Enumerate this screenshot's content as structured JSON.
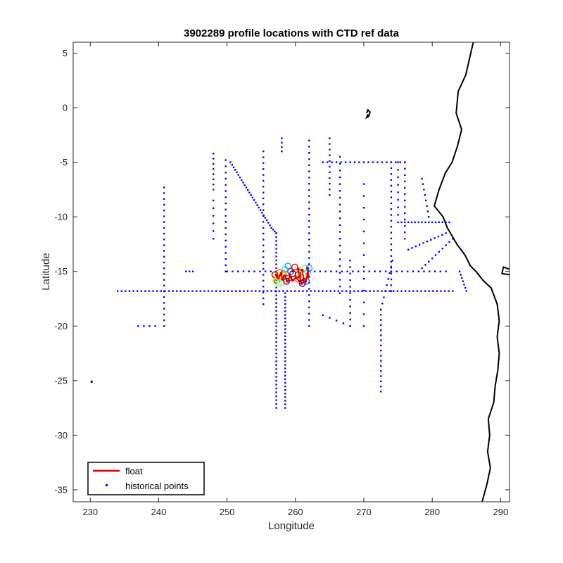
{
  "chart_data": {
    "type": "scatter",
    "title": "3902289 profile locations with CTD ref data",
    "xlabel": "Longitude",
    "ylabel": "Latitude",
    "xlim": [
      227.5,
      291.3
    ],
    "ylim": [
      -36.1,
      6.0
    ],
    "xticks": [
      230,
      240,
      250,
      260,
      270,
      280,
      290
    ],
    "yticks": [
      5,
      0,
      -5,
      -10,
      -15,
      -20,
      -25,
      -30,
      -35
    ],
    "grid": false,
    "legend": {
      "position": "bottom-left",
      "entries": [
        {
          "label": "float",
          "symbol": "line",
          "color": "#e00000"
        },
        {
          "label": "historical points",
          "symbol": "dot",
          "color": "#0000ff"
        }
      ]
    },
    "colors": {
      "float": "#e00000",
      "historical": "#0000ff",
      "coast": "#000000",
      "axes": "#262626"
    },
    "float_track": {
      "name": "float",
      "points": [
        [
          257.2,
          -15.3
        ],
        [
          257.5,
          -15.6
        ],
        [
          257.9,
          -15.2
        ],
        [
          258.1,
          -15.7
        ],
        [
          258.4,
          -15.4
        ],
        [
          258.8,
          -15.9
        ],
        [
          259.2,
          -15.5
        ],
        [
          259.6,
          -15.8
        ],
        [
          260.1,
          -15.6
        ],
        [
          260.6,
          -15.9
        ],
        [
          261.2,
          -15.7
        ],
        [
          261.0,
          -14.9
        ],
        [
          260.4,
          -14.8
        ],
        [
          260.6,
          -15.5
        ],
        [
          260.9,
          -16.1
        ],
        [
          261.5,
          -15.9
        ],
        [
          261.8,
          -15.2
        ],
        [
          261.8,
          -14.7
        ],
        [
          261.9,
          -15.5
        ]
      ]
    },
    "profile_markers": {
      "colors": [
        "#8b0000",
        "#e60000",
        "#ff6a00",
        "#ffd400",
        "#c8ff33",
        "#5dffa3",
        "#27e8d6",
        "#0fa8ff",
        "#1c4fff",
        "#0a0ab0"
      ],
      "points": [
        [
          257.0,
          -15.3
        ],
        [
          257.3,
          -15.8
        ],
        [
          257.7,
          -15.1
        ],
        [
          258.0,
          -16.0
        ],
        [
          258.3,
          -15.4
        ],
        [
          257.9,
          -15.6
        ],
        [
          258.5,
          -14.8
        ],
        [
          258.9,
          -14.5
        ],
        [
          259.3,
          -15.0
        ],
        [
          258.7,
          -15.9
        ],
        [
          259.6,
          -15.2
        ],
        [
          259.9,
          -14.6
        ],
        [
          260.3,
          -15.7
        ],
        [
          260.7,
          -14.9
        ],
        [
          261.1,
          -15.3
        ],
        [
          261.4,
          -14.7
        ],
        [
          261.8,
          -15.1
        ],
        [
          262.0,
          -14.7
        ],
        [
          261.6,
          -15.9
        ],
        [
          261.0,
          -16.1
        ],
        [
          260.4,
          -15.3
        ],
        [
          259.0,
          -15.6
        ],
        [
          258.2,
          -15.2
        ],
        [
          257.5,
          -15.5
        ],
        [
          257.1,
          -15.9
        ],
        [
          257.6,
          -16.1
        ]
      ]
    },
    "historical_points": {
      "name": "historical points",
      "lines": [
        [
          [
            234,
            -16.8
          ],
          [
            283,
            -16.8
          ],
          85
        ],
        [
          [
            250,
            -15.0
          ],
          [
            282,
            -15.0
          ],
          40
        ],
        [
          [
            257.2,
            -11.5
          ],
          [
            257.2,
            -27.5
          ],
          45
        ],
        [
          [
            258.5,
            -17.0
          ],
          [
            258.5,
            -27.5
          ],
          32
        ],
        [
          [
            250.5,
            -5.0
          ],
          [
            256.5,
            -11.0
          ],
          26
        ],
        [
          [
            256.5,
            -11.0
          ],
          [
            257.2,
            -11.5
          ],
          3
        ],
        [
          [
            240.8,
            -7.3
          ],
          [
            240.8,
            -20.0
          ],
          24
        ],
        [
          [
            249.8,
            -4.8
          ],
          [
            249.8,
            -15.0
          ],
          18
        ],
        [
          [
            248.0,
            -4.2
          ],
          [
            248.0,
            -7.5
          ],
          7
        ],
        [
          [
            248.0,
            -8.5
          ],
          [
            248.0,
            -12.0
          ],
          5
        ],
        [
          [
            255.3,
            -4.0
          ],
          [
            255.3,
            -18.0
          ],
          26
        ],
        [
          [
            262.0,
            -3.0
          ],
          [
            262.0,
            -20.0
          ],
          30
        ],
        [
          [
            265.0,
            -2.8
          ],
          [
            265.0,
            -8.0
          ],
          10
        ],
        [
          [
            266.5,
            -4.5
          ],
          [
            266.5,
            -17.0
          ],
          20
        ],
        [
          [
            264.0,
            -5.0
          ],
          [
            276.0,
            -5.0
          ],
          18
        ],
        [
          [
            274.0,
            -5.0
          ],
          [
            274.0,
            -16.8
          ],
          22
        ],
        [
          [
            276.0,
            -5.0
          ],
          [
            276.0,
            -12.0
          ],
          12
        ],
        [
          [
            275.5,
            -10.5
          ],
          [
            282.5,
            -10.5
          ],
          14
        ],
        [
          [
            275.0,
            -5.0
          ],
          [
            275.0,
            -10.5
          ],
          8
        ],
        [
          [
            272.5,
            -18.5
          ],
          [
            272.5,
            -26.0
          ],
          16
        ],
        [
          [
            274.2,
            -14.0
          ],
          [
            272.5,
            -18.5
          ],
          8
        ],
        [
          [
            276.5,
            -13.0
          ],
          [
            282.0,
            -11.5
          ],
          10
        ],
        [
          [
            278.0,
            -15.0
          ],
          [
            283.0,
            -12.0
          ],
          10
        ],
        [
          [
            279.5,
            -10.0
          ],
          [
            278.5,
            -6.5
          ],
          7
        ],
        [
          [
            284.0,
            -15.0
          ],
          [
            285.0,
            -16.8
          ],
          6
        ],
        [
          [
            258.0,
            -2.8
          ],
          [
            258.0,
            -4.0
          ],
          3
        ],
        [
          [
            268.0,
            -14.0
          ],
          [
            268.0,
            -20.0
          ],
          10
        ],
        [
          [
            270.0,
            -7.0
          ],
          [
            270.0,
            -20.0
          ],
          12
        ],
        [
          [
            244.0,
            -15.0
          ],
          [
            245.0,
            -15.0
          ],
          2
        ],
        [
          [
            237.0,
            -20.0
          ],
          [
            239.5,
            -20.0
          ],
          3
        ],
        [
          [
            264.0,
            -19.0
          ],
          [
            268.0,
            -20.0
          ],
          4
        ]
      ]
    },
    "coastline": [
      [
        [
          286.0,
          6.0
        ],
        [
          284.9,
          3.0
        ],
        [
          283.8,
          1.5
        ],
        [
          283.5,
          -0.5
        ],
        [
          284.3,
          -2.0
        ],
        [
          283.7,
          -3.5
        ],
        [
          282.9,
          -5.0
        ],
        [
          281.9,
          -6.0
        ],
        [
          281.0,
          -7.5
        ],
        [
          280.3,
          -9.0
        ],
        [
          281.6,
          -10.0
        ],
        [
          282.2,
          -11.0
        ],
        [
          283.6,
          -12.5
        ],
        [
          284.8,
          -13.5
        ],
        [
          285.6,
          -14.5
        ],
        [
          286.4,
          -15.0
        ],
        [
          287.4,
          -15.8
        ],
        [
          288.6,
          -16.5
        ],
        [
          289.5,
          -18.0
        ],
        [
          289.8,
          -19.5
        ],
        [
          289.5,
          -21.0
        ],
        [
          289.8,
          -22.5
        ],
        [
          289.6,
          -24.0
        ],
        [
          289.2,
          -25.5
        ],
        [
          289.0,
          -27.0
        ],
        [
          288.2,
          -28.5
        ],
        [
          288.4,
          -30.0
        ],
        [
          288.1,
          -31.5
        ],
        [
          288.5,
          -33.0
        ],
        [
          288.0,
          -34.5
        ],
        [
          287.3,
          -36.1
        ]
      ],
      [
        [
          291.3,
          -15.3
        ],
        [
          290.2,
          -15.2
        ],
        [
          290.4,
          -14.6
        ],
        [
          291.3,
          -14.8
        ]
      ],
      [
        [
          270.4,
          -0.5
        ],
        [
          270.6,
          -0.2
        ],
        [
          270.9,
          -0.4
        ],
        [
          270.7,
          -0.8
        ],
        [
          270.4,
          -0.9
        ],
        [
          270.6,
          -0.6
        ]
      ]
    ],
    "isolated_points": [
      [
        230.2,
        -25.1
      ]
    ]
  }
}
